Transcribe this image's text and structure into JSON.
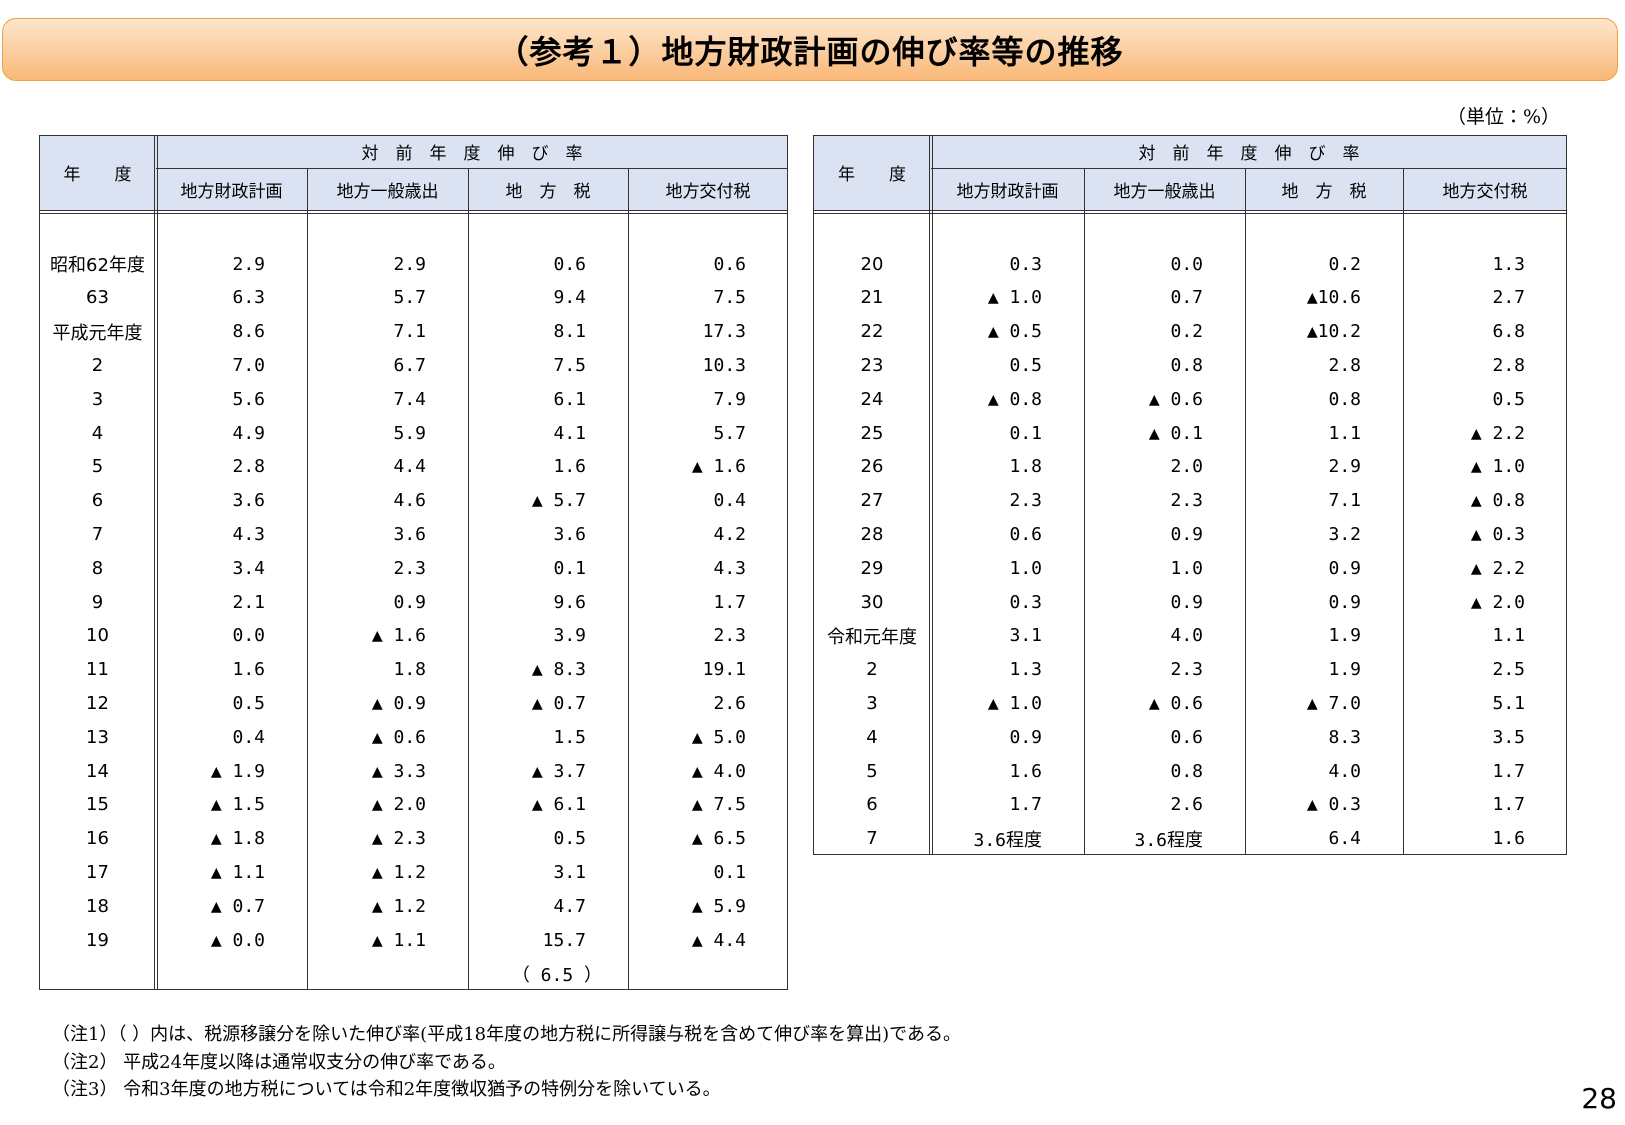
{
  "header": {
    "title": "（参考１）地方財政計画の伸び率等の推移",
    "unit": "（単位：%）"
  },
  "tables": [
    {
      "year_header": "年　　度",
      "group_header": "対　前　年　度　伸　び　率",
      "columns": [
        "地方財政計画",
        "地方一般歳出",
        "地　方　税",
        "地方交付税"
      ],
      "rows": [
        [
          "昭和62年度",
          "2.9",
          "2.9",
          "0.6",
          "0.6"
        ],
        [
          "63",
          "6.3",
          "5.7",
          "9.4",
          "7.5"
        ],
        [
          "平成元年度",
          "8.6",
          "7.1",
          "8.1",
          "17.3"
        ],
        [
          "2",
          "7.0",
          "6.7",
          "7.5",
          "10.3"
        ],
        [
          "3",
          "5.6",
          "7.4",
          "6.1",
          "7.9"
        ],
        [
          "4",
          "4.9",
          "5.9",
          "4.1",
          "5.7"
        ],
        [
          "5",
          "2.8",
          "4.4",
          "1.6",
          "▲ 1.6"
        ],
        [
          "6",
          "3.6",
          "4.6",
          "▲ 5.7",
          "0.4"
        ],
        [
          "7",
          "4.3",
          "3.6",
          "3.6",
          "4.2"
        ],
        [
          "8",
          "3.4",
          "2.3",
          "0.1",
          "4.3"
        ],
        [
          "9",
          "2.1",
          "0.9",
          "9.6",
          "1.7"
        ],
        [
          "10",
          "0.0",
          "▲ 1.6",
          "3.9",
          "2.3"
        ],
        [
          "11",
          "1.6",
          "1.8",
          "▲ 8.3",
          "19.1"
        ],
        [
          "12",
          "0.5",
          "▲ 0.9",
          "▲ 0.7",
          "2.6"
        ],
        [
          "13",
          "0.4",
          "▲ 0.6",
          "1.5",
          "▲ 5.0"
        ],
        [
          "14",
          "▲ 1.9",
          "▲ 3.3",
          "▲ 3.7",
          "▲ 4.0"
        ],
        [
          "15",
          "▲ 1.5",
          "▲ 2.0",
          "▲ 6.1",
          "▲ 7.5"
        ],
        [
          "16",
          "▲ 1.8",
          "▲ 2.3",
          "0.5",
          "▲ 6.5"
        ],
        [
          "17",
          "▲ 1.1",
          "▲ 1.2",
          "3.1",
          "0.1"
        ],
        [
          "18",
          "▲ 0.7",
          "▲ 1.2",
          "4.7",
          "▲ 5.9"
        ],
        [
          "19",
          "▲ 0.0",
          "▲ 1.1",
          "15.7",
          "▲ 4.4"
        ],
        [
          null,
          null,
          null,
          "（ 6.5 ）",
          null
        ]
      ]
    },
    {
      "year_header": "年　　度",
      "group_header": "対　前　年　度　伸　び　率",
      "columns": [
        "地方財政計画",
        "地方一般歳出",
        "地　方　税",
        "地方交付税"
      ],
      "rows": [
        [
          "20",
          "0.3",
          "0.0",
          "0.2",
          "1.3"
        ],
        [
          "21",
          "▲ 1.0",
          "0.7",
          "▲10.6",
          "2.7"
        ],
        [
          "22",
          "▲ 0.5",
          "0.2",
          "▲10.2",
          "6.8"
        ],
        [
          "23",
          "0.5",
          "0.8",
          "2.8",
          "2.8"
        ],
        [
          "24",
          "▲ 0.8",
          "▲ 0.6",
          "0.8",
          "0.5"
        ],
        [
          "25",
          "0.1",
          "▲ 0.1",
          "1.1",
          "▲ 2.2"
        ],
        [
          "26",
          "1.8",
          "2.0",
          "2.9",
          "▲ 1.0"
        ],
        [
          "27",
          "2.3",
          "2.3",
          "7.1",
          "▲ 0.8"
        ],
        [
          "28",
          "0.6",
          "0.9",
          "3.2",
          "▲ 0.3"
        ],
        [
          "29",
          "1.0",
          "1.0",
          "0.9",
          "▲ 2.2"
        ],
        [
          "30",
          "0.3",
          "0.9",
          "0.9",
          "▲ 2.0"
        ],
        [
          "令和元年度",
          "3.1",
          "4.0",
          "1.9",
          "1.1"
        ],
        [
          "2",
          "1.3",
          "2.3",
          "1.9",
          "2.5"
        ],
        [
          "3",
          "▲ 1.0",
          "▲ 0.6",
          "▲ 7.0",
          "5.1"
        ],
        [
          "4",
          "0.9",
          "0.6",
          "8.3",
          "3.5"
        ],
        [
          "5",
          "1.6",
          "0.8",
          "4.0",
          "1.7"
        ],
        [
          "6",
          "1.7",
          "2.6",
          "▲ 0.3",
          "1.7"
        ],
        [
          "7",
          "3.6程度",
          "3.6程度",
          "6.4",
          "1.6"
        ]
      ]
    }
  ],
  "notes": [
    "（注1）（ ）内は、税源移譲分を除いた伸び率(平成18年度の地方税に所得譲与税を含めて伸び率を算出)である。",
    "（注2） 平成24年度以降は通常収支分の伸び率である。",
    "（注3） 令和3年度の地方税については令和2年度徴収猶予の特例分を除いている。"
  ],
  "page_number": "28"
}
